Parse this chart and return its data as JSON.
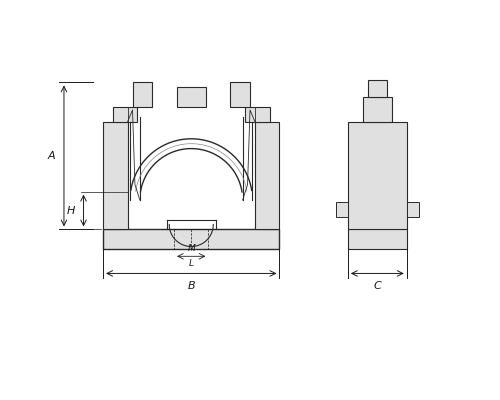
{
  "bg_color": "#ffffff",
  "line_color": "#2a2a2a",
  "dim_color": "#1a1a1a",
  "gray_fill": "#d8d8d8",
  "light_gray": "#e8e8e8",
  "fig_width": 5.0,
  "fig_height": 4.0,
  "dpi": 100,
  "labels": {
    "A": "A",
    "H": "H",
    "B": "B",
    "M": "M",
    "L": "L",
    "C": "C"
  }
}
